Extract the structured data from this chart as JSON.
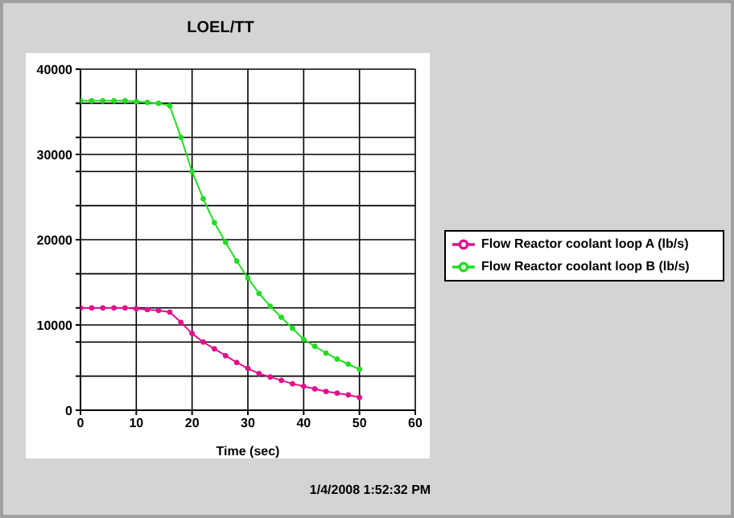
{
  "chart_data": {
    "type": "line",
    "title": "LOEL/TT",
    "xlabel": "Time (sec)",
    "annotations": [
      "1/4/2008 1:52:32 PM"
    ],
    "x": [
      0,
      2,
      4,
      6,
      8,
      10,
      12,
      14,
      16,
      18,
      20,
      22,
      24,
      26,
      28,
      30,
      32,
      34,
      36,
      38,
      40,
      42,
      44,
      46,
      48,
      50
    ],
    "series": [
      {
        "name": "Flow Reactor coolant loop A (lb/s)",
        "color": "#e0108c",
        "values": [
          12000,
          12000,
          12000,
          12000,
          12000,
          11900,
          11800,
          11700,
          11500,
          10300,
          9000,
          8000,
          7200,
          6400,
          5600,
          4900,
          4300,
          3900,
          3500,
          3100,
          2800,
          2500,
          2200,
          2000,
          1800,
          1500
        ]
      },
      {
        "name": "Flow Reactor coolant loop B (lb/s)",
        "color": "#22dd22",
        "values": [
          36300,
          36300,
          36300,
          36300,
          36300,
          36200,
          36100,
          36000,
          35700,
          32000,
          28000,
          24800,
          22000,
          19700,
          17500,
          15500,
          13700,
          12200,
          10900,
          9600,
          8300,
          7500,
          6700,
          6000,
          5400,
          4800
        ]
      }
    ],
    "xlim": [
      0,
      60
    ],
    "xticks": [
      0,
      10,
      20,
      30,
      40,
      50,
      60
    ],
    "ylim": [
      0,
      40000
    ],
    "yticks": [
      0,
      {
        "value": 4000,
        "label": null
      },
      {
        "value": 8000,
        "label": null
      },
      10000,
      {
        "value": 12000,
        "label": null
      },
      {
        "value": 16000,
        "label": null
      },
      20000,
      {
        "value": 24000,
        "label": null
      },
      {
        "value": 28000,
        "label": null
      },
      30000,
      {
        "value": 32000,
        "label": null
      },
      {
        "value": 36000,
        "label": null
      },
      40000
    ],
    "grid": true,
    "legend": "right",
    "marker": "circle",
    "line_style": "solid"
  }
}
